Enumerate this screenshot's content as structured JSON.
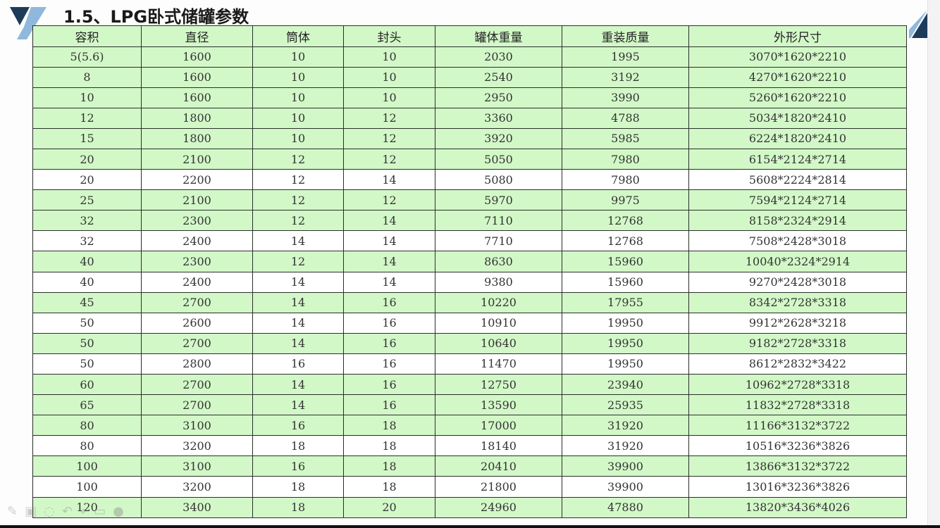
{
  "slide": {
    "title": "1.5、LPG卧式储罐参数",
    "accent_dark": "#1f3b5a",
    "accent_light": "#8fb8dc"
  },
  "table": {
    "columns": [
      "容积",
      "直径",
      "筒体",
      "封头",
      "罐体重量",
      "重装质量",
      "外形尺寸"
    ],
    "header_color": "#d3f8c8",
    "rows": [
      {
        "cells": [
          "5(5.6)",
          "1600",
          "10",
          "10",
          "2030",
          "1995",
          "3070*1620*2210"
        ],
        "highlight": true
      },
      {
        "cells": [
          "8",
          "1600",
          "10",
          "10",
          "2540",
          "3192",
          "4270*1620*2210"
        ],
        "highlight": true
      },
      {
        "cells": [
          "10",
          "1600",
          "10",
          "10",
          "2950",
          "3990",
          "5260*1620*2210"
        ],
        "highlight": true
      },
      {
        "cells": [
          "12",
          "1800",
          "10",
          "12",
          "3360",
          "4788",
          "5034*1820*2410"
        ],
        "highlight": true
      },
      {
        "cells": [
          "15",
          "1800",
          "10",
          "12",
          "3920",
          "5985",
          "6224*1820*2410"
        ],
        "highlight": true
      },
      {
        "cells": [
          "20",
          "2100",
          "12",
          "12",
          "5050",
          "7980",
          "6154*2124*2714"
        ],
        "highlight": true
      },
      {
        "cells": [
          "20",
          "2200",
          "12",
          "14",
          "5080",
          "7980",
          "5608*2224*2814"
        ],
        "highlight": false
      },
      {
        "cells": [
          "25",
          "2100",
          "12",
          "12",
          "5970",
          "9975",
          "7594*2124*2714"
        ],
        "highlight": true
      },
      {
        "cells": [
          "32",
          "2300",
          "12",
          "14",
          "7110",
          "12768",
          "8158*2324*2914"
        ],
        "highlight": true
      },
      {
        "cells": [
          "32",
          "2400",
          "14",
          "14",
          "7710",
          "12768",
          "7508*2428*3018"
        ],
        "highlight": false
      },
      {
        "cells": [
          "40",
          "2300",
          "12",
          "14",
          "8630",
          "15960",
          "10040*2324*2914"
        ],
        "highlight": true
      },
      {
        "cells": [
          "40",
          "2400",
          "14",
          "14",
          "9380",
          "15960",
          "9270*2428*3018"
        ],
        "highlight": false
      },
      {
        "cells": [
          "45",
          "2700",
          "14",
          "16",
          "10220",
          "17955",
          "8342*2728*3318"
        ],
        "highlight": true
      },
      {
        "cells": [
          "50",
          "2600",
          "14",
          "16",
          "10910",
          "19950",
          "9912*2628*3218"
        ],
        "highlight": false
      },
      {
        "cells": [
          "50",
          "2700",
          "14",
          "16",
          "10640",
          "19950",
          "9182*2728*3318"
        ],
        "highlight": true
      },
      {
        "cells": [
          "50",
          "2800",
          "16",
          "16",
          "11470",
          "19950",
          "8612*2832*3422"
        ],
        "highlight": false
      },
      {
        "cells": [
          "60",
          "2700",
          "14",
          "16",
          "12750",
          "23940",
          "10962*2728*3318"
        ],
        "highlight": true
      },
      {
        "cells": [
          "65",
          "2700",
          "14",
          "16",
          "13590",
          "25935",
          "11832*2728*3318"
        ],
        "highlight": true
      },
      {
        "cells": [
          "80",
          "3100",
          "16",
          "18",
          "17000",
          "31920",
          "11166*3132*3722"
        ],
        "highlight": true
      },
      {
        "cells": [
          "80",
          "3200",
          "18",
          "18",
          "18140",
          "31920",
          "10516*3236*3826"
        ],
        "highlight": false
      },
      {
        "cells": [
          "100",
          "3100",
          "16",
          "18",
          "20410",
          "39900",
          "13866*3132*3722"
        ],
        "highlight": true
      },
      {
        "cells": [
          "100",
          "3200",
          "18",
          "18",
          "21800",
          "39900",
          "13016*3236*3826"
        ],
        "highlight": false
      },
      {
        "cells": [
          "120",
          "3400",
          "18",
          "20",
          "24960",
          "47880",
          "13820*3436*4026"
        ],
        "highlight": true
      }
    ]
  },
  "toolbar": {
    "icons": [
      "pen-icon",
      "slides-icon",
      "highlighter-icon",
      "undo-icon",
      "pointer-icon",
      "video-icon",
      "more-icon"
    ]
  }
}
